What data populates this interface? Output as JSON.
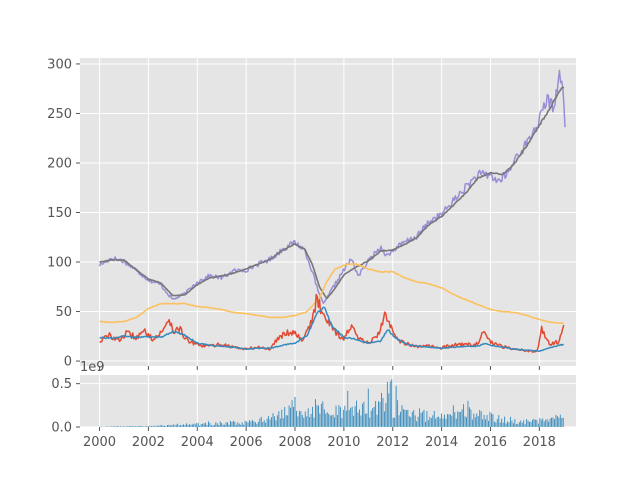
{
  "chart_data": [
    {
      "type": "line",
      "title": "",
      "xlabel": "",
      "ylabel": "",
      "xlim": [
        1999.2,
        2019.5
      ],
      "ylim": [
        -5,
        306
      ],
      "x_ticks": [
        2000,
        2002,
        2004,
        2006,
        2008,
        2010,
        2012,
        2014,
        2016,
        2018
      ],
      "x_tick_labels": [
        "2000",
        "2002",
        "2004",
        "2006",
        "2008",
        "2010",
        "2012",
        "2014",
        "2016",
        "2018"
      ],
      "y_ticks": [
        0,
        50,
        100,
        150,
        200,
        250,
        300
      ],
      "y_tick_labels": [
        "0",
        "50",
        "100",
        "150",
        "200",
        "250",
        "300"
      ],
      "grid": true,
      "background": "#e5e5e5",
      "series": [
        {
          "color": "#988ed5",
          "points": [
            [
              2000.0,
              97
            ],
            [
              2000.5,
              104
            ],
            [
              2001.0,
              101
            ],
            [
              2001.5,
              92
            ],
            [
              2002.0,
              82
            ],
            [
              2002.5,
              77
            ],
            [
              2003.0,
              62
            ],
            [
              2003.5,
              68
            ],
            [
              2004.0,
              80
            ],
            [
              2004.5,
              86
            ],
            [
              2005.0,
              84
            ],
            [
              2005.5,
              91
            ],
            [
              2006.0,
              92
            ],
            [
              2006.5,
              98
            ],
            [
              2007.0,
              103
            ],
            [
              2007.5,
              113
            ],
            [
              2008.0,
              120
            ],
            [
              2008.4,
              112
            ],
            [
              2008.7,
              91
            ],
            [
              2009.0,
              66
            ],
            [
              2009.2,
              58
            ],
            [
              2009.5,
              72
            ],
            [
              2010.0,
              92
            ],
            [
              2010.3,
              103
            ],
            [
              2010.6,
              86
            ],
            [
              2011.0,
              101
            ],
            [
              2011.5,
              115
            ],
            [
              2011.8,
              106
            ],
            [
              2012.0,
              112
            ],
            [
              2012.5,
              120
            ],
            [
              2013.0,
              126
            ],
            [
              2013.5,
              141
            ],
            [
              2014.0,
              148
            ],
            [
              2014.5,
              162
            ],
            [
              2015.0,
              176
            ],
            [
              2015.5,
              188
            ],
            [
              2016.0,
              188
            ],
            [
              2016.3,
              181
            ],
            [
              2016.8,
              192
            ],
            [
              2017.0,
              205
            ],
            [
              2017.5,
              220
            ],
            [
              2018.0,
              243
            ],
            [
              2018.3,
              264
            ],
            [
              2018.6,
              256
            ],
            [
              2018.8,
              290
            ],
            [
              2019.0,
              268
            ],
            [
              2019.05,
              237
            ]
          ]
        },
        {
          "color": "#777777",
          "points": [
            [
              2000.0,
              100
            ],
            [
              2000.5,
              102
            ],
            [
              2001.0,
              102
            ],
            [
              2001.5,
              92
            ],
            [
              2002.0,
              83
            ],
            [
              2002.5,
              79
            ],
            [
              2003.0,
              66
            ],
            [
              2003.5,
              67
            ],
            [
              2004.0,
              77
            ],
            [
              2004.5,
              84
            ],
            [
              2005.0,
              86
            ],
            [
              2005.5,
              89
            ],
            [
              2006.0,
              93
            ],
            [
              2006.5,
              98
            ],
            [
              2007.0,
              103
            ],
            [
              2007.5,
              112
            ],
            [
              2008.0,
              118
            ],
            [
              2008.4,
              113
            ],
            [
              2008.7,
              98
            ],
            [
              2009.0,
              75
            ],
            [
              2009.3,
              63
            ],
            [
              2009.6,
              72
            ],
            [
              2010.0,
              87
            ],
            [
              2010.5,
              95
            ],
            [
              2011.0,
              101
            ],
            [
              2011.5,
              111
            ],
            [
              2012.0,
              112
            ],
            [
              2012.5,
              118
            ],
            [
              2013.0,
              125
            ],
            [
              2013.5,
              138
            ],
            [
              2014.0,
              146
            ],
            [
              2014.5,
              158
            ],
            [
              2015.0,
              170
            ],
            [
              2015.5,
              185
            ],
            [
              2016.0,
              190
            ],
            [
              2016.5,
              188
            ],
            [
              2017.0,
              200
            ],
            [
              2017.5,
              218
            ],
            [
              2018.0,
              238
            ],
            [
              2018.5,
              258
            ],
            [
              2018.9,
              276
            ],
            [
              2019.0,
              275
            ]
          ]
        },
        {
          "color": "#fbc15e",
          "points": [
            [
              2000.0,
              40
            ],
            [
              2000.5,
              39
            ],
            [
              2001.0,
              40
            ],
            [
              2001.5,
              44
            ],
            [
              2002.0,
              53
            ],
            [
              2002.5,
              58
            ],
            [
              2003.0,
              58
            ],
            [
              2003.5,
              58
            ],
            [
              2004.0,
              55
            ],
            [
              2004.5,
              54
            ],
            [
              2005.0,
              52
            ],
            [
              2005.5,
              49
            ],
            [
              2006.0,
              48
            ],
            [
              2006.5,
              46
            ],
            [
              2007.0,
              44
            ],
            [
              2007.5,
              44
            ],
            [
              2008.0,
              46
            ],
            [
              2008.5,
              50
            ],
            [
              2009.0,
              64
            ],
            [
              2009.3,
              80
            ],
            [
              2009.6,
              92
            ],
            [
              2010.0,
              97
            ],
            [
              2010.5,
              98
            ],
            [
              2011.0,
              93
            ],
            [
              2011.5,
              90
            ],
            [
              2012.0,
              90
            ],
            [
              2012.5,
              84
            ],
            [
              2013.0,
              80
            ],
            [
              2013.5,
              78
            ],
            [
              2014.0,
              74
            ],
            [
              2014.5,
              67
            ],
            [
              2015.0,
              62
            ],
            [
              2015.5,
              57
            ],
            [
              2016.0,
              52
            ],
            [
              2016.5,
              50
            ],
            [
              2017.0,
              49
            ],
            [
              2017.5,
              46
            ],
            [
              2018.0,
              42
            ],
            [
              2018.5,
              39
            ],
            [
              2019.0,
              38
            ]
          ]
        },
        {
          "color": "#e24a33",
          "points": [
            [
              2000.0,
              20
            ],
            [
              2000.4,
              26
            ],
            [
              2000.8,
              21
            ],
            [
              2001.1,
              28
            ],
            [
              2001.5,
              24
            ],
            [
              2001.9,
              30
            ],
            [
              2002.2,
              22
            ],
            [
              2002.6,
              30
            ],
            [
              2002.8,
              44
            ],
            [
              2003.1,
              28
            ],
            [
              2003.3,
              35
            ],
            [
              2003.5,
              22
            ],
            [
              2004.0,
              16
            ],
            [
              2004.5,
              15
            ],
            [
              2005.0,
              17
            ],
            [
              2005.5,
              14
            ],
            [
              2006.0,
              12
            ],
            [
              2006.5,
              14
            ],
            [
              2007.0,
              12
            ],
            [
              2007.3,
              24
            ],
            [
              2007.6,
              28
            ],
            [
              2007.9,
              30
            ],
            [
              2008.3,
              22
            ],
            [
              2008.7,
              40
            ],
            [
              2008.9,
              64
            ],
            [
              2009.1,
              50
            ],
            [
              2009.4,
              40
            ],
            [
              2009.7,
              28
            ],
            [
              2010.0,
              22
            ],
            [
              2010.3,
              36
            ],
            [
              2010.6,
              22
            ],
            [
              2011.0,
              18
            ],
            [
              2011.4,
              26
            ],
            [
              2011.7,
              47
            ],
            [
              2011.9,
              38
            ],
            [
              2012.2,
              22
            ],
            [
              2012.6,
              17
            ],
            [
              2013.0,
              14
            ],
            [
              2013.5,
              15
            ],
            [
              2014.0,
              13
            ],
            [
              2014.5,
              16
            ],
            [
              2015.0,
              17
            ],
            [
              2015.4,
              16
            ],
            [
              2015.7,
              28
            ],
            [
              2016.0,
              20
            ],
            [
              2016.4,
              15
            ],
            [
              2016.8,
              13
            ],
            [
              2017.2,
              12
            ],
            [
              2017.6,
              10
            ],
            [
              2017.9,
              9
            ],
            [
              2018.1,
              33
            ],
            [
              2018.4,
              17
            ],
            [
              2018.8,
              20
            ],
            [
              2019.0,
              35
            ]
          ]
        },
        {
          "color": "#348abd",
          "points": [
            [
              2000.0,
              24
            ],
            [
              2000.5,
              23
            ],
            [
              2001.0,
              25
            ],
            [
              2001.5,
              24
            ],
            [
              2002.0,
              25
            ],
            [
              2002.5,
              24
            ],
            [
              2003.0,
              30
            ],
            [
              2003.5,
              26
            ],
            [
              2004.0,
              18
            ],
            [
              2004.5,
              16
            ],
            [
              2005.0,
              15
            ],
            [
              2005.5,
              14
            ],
            [
              2006.0,
              12
            ],
            [
              2006.5,
              13
            ],
            [
              2007.0,
              13
            ],
            [
              2007.5,
              16
            ],
            [
              2008.0,
              18
            ],
            [
              2008.5,
              26
            ],
            [
              2008.9,
              48
            ],
            [
              2009.2,
              54
            ],
            [
              2009.5,
              36
            ],
            [
              2010.0,
              24
            ],
            [
              2010.5,
              22
            ],
            [
              2011.0,
              18
            ],
            [
              2011.5,
              20
            ],
            [
              2011.8,
              32
            ],
            [
              2012.1,
              23
            ],
            [
              2012.6,
              17
            ],
            [
              2013.0,
              15
            ],
            [
              2013.5,
              14
            ],
            [
              2014.0,
              13
            ],
            [
              2014.5,
              14
            ],
            [
              2015.0,
              15
            ],
            [
              2015.5,
              15
            ],
            [
              2015.8,
              18
            ],
            [
              2016.0,
              16
            ],
            [
              2016.5,
              14
            ],
            [
              2017.0,
              12
            ],
            [
              2017.5,
              11
            ],
            [
              2018.0,
              10
            ],
            [
              2018.5,
              14
            ],
            [
              2019.0,
              17
            ]
          ]
        }
      ]
    },
    {
      "type": "bar",
      "title": "",
      "xlabel": "",
      "ylabel": "",
      "xlim": [
        1999.2,
        2019.5
      ],
      "ylim": [
        0,
        0.6
      ],
      "y_ticks": [
        0.0,
        0.5
      ],
      "y_tick_labels": [
        "0.0",
        "0.5"
      ],
      "offset_text": "1e9",
      "grid": true,
      "background": "#e5e5e5",
      "color": "#348abd",
      "volume_envelope": [
        [
          2000.0,
          0.004
        ],
        [
          2001.0,
          0.008
        ],
        [
          2002.0,
          0.012
        ],
        [
          2003.0,
          0.03
        ],
        [
          2004.0,
          0.04
        ],
        [
          2005.0,
          0.05
        ],
        [
          2006.0,
          0.07
        ],
        [
          2007.0,
          0.12
        ],
        [
          2007.5,
          0.22
        ],
        [
          2008.0,
          0.28
        ],
        [
          2008.5,
          0.3
        ],
        [
          2009.0,
          0.3
        ],
        [
          2009.5,
          0.22
        ],
        [
          2010.0,
          0.25
        ],
        [
          2010.5,
          0.26
        ],
        [
          2011.0,
          0.24
        ],
        [
          2011.5,
          0.3
        ],
        [
          2011.7,
          0.45
        ],
        [
          2012.0,
          0.3
        ],
        [
          2012.5,
          0.2
        ],
        [
          2013.0,
          0.18
        ],
        [
          2013.5,
          0.16
        ],
        [
          2014.0,
          0.18
        ],
        [
          2014.5,
          0.22
        ],
        [
          2015.0,
          0.22
        ],
        [
          2015.5,
          0.18
        ],
        [
          2016.0,
          0.14
        ],
        [
          2016.5,
          0.11
        ],
        [
          2017.0,
          0.09
        ],
        [
          2017.5,
          0.08
        ],
        [
          2018.0,
          0.09
        ],
        [
          2018.5,
          0.11
        ],
        [
          2019.0,
          0.12
        ]
      ]
    }
  ]
}
